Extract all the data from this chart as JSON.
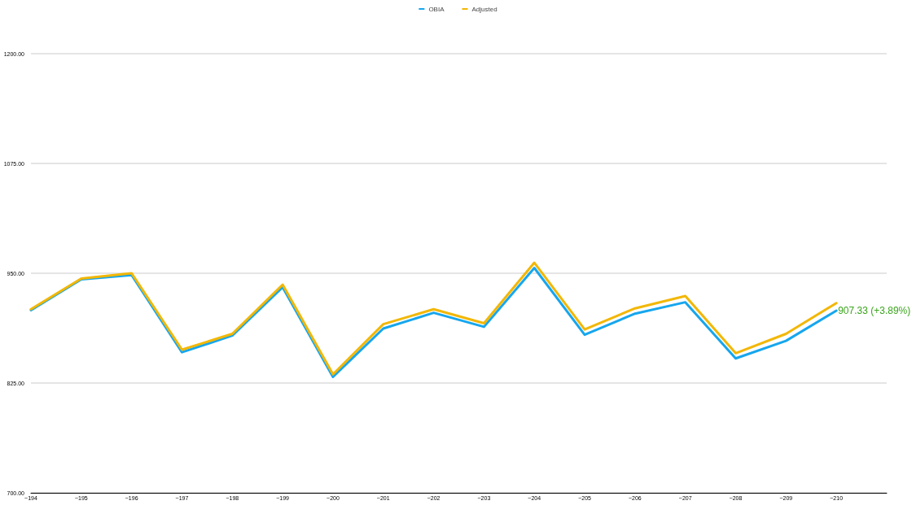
{
  "chart_data": {
    "type": "line",
    "categories": [
      "~194",
      "~195",
      "~196",
      "~197",
      "~198",
      "~199",
      "~200",
      "~201",
      "~202",
      "~203",
      "~204",
      "~205",
      "~206",
      "~207",
      "~208",
      "~209",
      "~210",
      null
    ],
    "series": [
      {
        "name": "OBIA",
        "color": "#16a6ee",
        "values": [
          908,
          943,
          948,
          860,
          879,
          934,
          832,
          887,
          905,
          889,
          956,
          880,
          904,
          917,
          853,
          873,
          907.33,
          null
        ]
      },
      {
        "name": "Adjusted",
        "color": "#f2b705",
        "values": [
          909,
          944,
          950,
          863,
          881,
          937,
          835,
          892,
          909,
          893,
          962,
          886,
          910,
          924,
          859,
          881,
          916,
          null
        ]
      }
    ],
    "ylim": [
      700,
      1200
    ],
    "yticks": [
      {
        "value": 700,
        "label": "700.00"
      },
      {
        "value": 825,
        "label": "825.00"
      },
      {
        "value": 950,
        "label": "950.00"
      },
      {
        "value": 1075,
        "label": "1075.00"
      },
      {
        "value": 1200,
        "label": "1200.00"
      }
    ],
    "annotations": [
      {
        "text": "907.33 (+3.89%)",
        "x": "~210",
        "y": 907.33
      }
    ],
    "grid": "y",
    "legend": "top",
    "marker": "none",
    "line_style": "solid"
  }
}
